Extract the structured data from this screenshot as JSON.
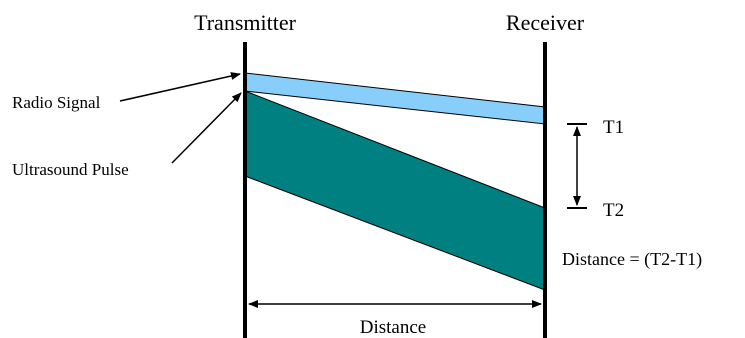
{
  "labels": {
    "transmitter": "Transmitter",
    "receiver": "Receiver",
    "radio_signal": "Radio Signal",
    "ultrasound_pulse": "Ultrasound Pulse",
    "t1": "T1",
    "t2": "T2",
    "distance_formula": "Distance = (T2-T1)",
    "distance": "Distance"
  },
  "colors": {
    "radio_band": "#87cefa",
    "ultrasound_band": "#008080",
    "lines": "#000000"
  }
}
